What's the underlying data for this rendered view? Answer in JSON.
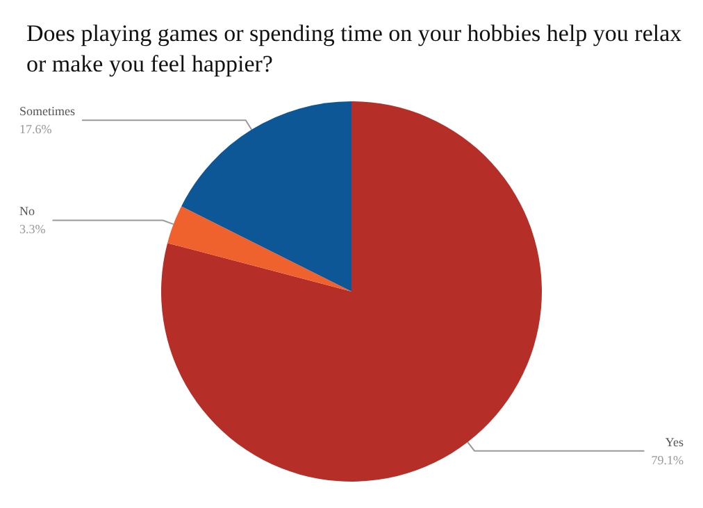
{
  "chart_data": {
    "type": "pie",
    "title": "Does playing games or spending time on your hobbies help you relax or make you feel happier?",
    "categories": [
      "Yes",
      "No",
      "Sometimes"
    ],
    "values": [
      79.1,
      3.3,
      17.6
    ],
    "colors": [
      "#b52f28",
      "#f0622d",
      "#0d5796"
    ],
    "value_labels": [
      "79.1%",
      "3.3%",
      "17.6%"
    ],
    "legend": false
  }
}
